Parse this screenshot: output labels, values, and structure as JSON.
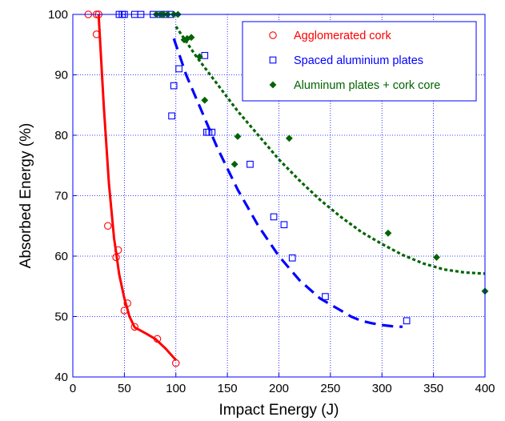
{
  "chart_data": {
    "type": "scatter",
    "title": "",
    "xlabel": "Impact Energy (J)",
    "ylabel": "Absorbed Energy (%)",
    "xlim": [
      0,
      400
    ],
    "ylim": [
      40,
      100
    ],
    "xticks": [
      "0",
      "50",
      "100",
      "150",
      "200",
      "250",
      "300",
      "350",
      "400"
    ],
    "yticks": [
      "40",
      "50",
      "60",
      "70",
      "80",
      "90",
      "100"
    ],
    "grid": true,
    "legend_position": "top-right",
    "series": [
      {
        "name": "Agglomerated cork",
        "color": "#ff0000",
        "marker": "circle",
        "points": [
          [
            15,
            100
          ],
          [
            23,
            100
          ],
          [
            25,
            100
          ],
          [
            23,
            96.7
          ],
          [
            34,
            65
          ],
          [
            42,
            59.8
          ],
          [
            44,
            61
          ],
          [
            50,
            51
          ],
          [
            53,
            52.2
          ],
          [
            60,
            48.3
          ],
          [
            82,
            46.3
          ],
          [
            100,
            42.3
          ]
        ],
        "fit_style": "solid",
        "fit": [
          [
            25,
            100
          ],
          [
            30,
            85
          ],
          [
            35,
            72
          ],
          [
            40,
            63
          ],
          [
            45,
            57
          ],
          [
            50,
            53
          ],
          [
            55,
            50
          ],
          [
            60,
            48.2
          ],
          [
            70,
            47.3
          ],
          [
            80,
            46.3
          ],
          [
            90,
            44.7
          ],
          [
            100,
            42.8
          ]
        ]
      },
      {
        "name": "Spaced aluminium plates",
        "color": "#0000ff",
        "marker": "square",
        "points": [
          [
            45,
            100
          ],
          [
            48,
            100
          ],
          [
            50,
            100
          ],
          [
            60,
            100
          ],
          [
            66,
            100
          ],
          [
            78,
            100
          ],
          [
            85,
            100
          ],
          [
            90,
            100
          ],
          [
            95,
            100
          ],
          [
            96,
            83.2
          ],
          [
            98,
            88.2
          ],
          [
            103,
            91
          ],
          [
            128,
            93.2
          ],
          [
            130,
            80.5
          ],
          [
            132,
            80.5
          ],
          [
            135,
            80.5
          ],
          [
            172,
            75.2
          ],
          [
            195,
            66.5
          ],
          [
            205,
            65.2
          ],
          [
            213,
            59.7
          ],
          [
            245,
            53.3
          ],
          [
            324,
            49.3
          ]
        ],
        "fit_style": "dashed",
        "fit": [
          [
            98,
            96
          ],
          [
            110,
            90
          ],
          [
            120,
            86
          ],
          [
            130,
            82
          ],
          [
            140,
            78
          ],
          [
            150,
            74.5
          ],
          [
            160,
            71
          ],
          [
            170,
            68
          ],
          [
            180,
            65
          ],
          [
            190,
            62.5
          ],
          [
            200,
            60
          ],
          [
            210,
            58
          ],
          [
            220,
            56
          ],
          [
            230,
            54.5
          ],
          [
            240,
            53
          ],
          [
            250,
            52
          ],
          [
            260,
            51
          ],
          [
            270,
            50
          ],
          [
            280,
            49.3
          ],
          [
            290,
            48.9
          ],
          [
            300,
            48.6
          ],
          [
            310,
            48.4
          ],
          [
            320,
            48.3
          ]
        ]
      },
      {
        "name": "Aluminum plates + cork core",
        "color": "#006400",
        "marker": "diamond",
        "points": [
          [
            81,
            100
          ],
          [
            85,
            100
          ],
          [
            88,
            100
          ],
          [
            92,
            100
          ],
          [
            98,
            100
          ],
          [
            102,
            100
          ],
          [
            108,
            95.8
          ],
          [
            111,
            96
          ],
          [
            115,
            96.2
          ],
          [
            123,
            93
          ],
          [
            128,
            85.8
          ],
          [
            157,
            75.2
          ],
          [
            160,
            79.8
          ],
          [
            210,
            79.5
          ],
          [
            306,
            63.8
          ],
          [
            353,
            59.8
          ],
          [
            400,
            54.2
          ]
        ],
        "fit_style": "dotted",
        "fit": [
          [
            100,
            98
          ],
          [
            120,
            93
          ],
          [
            140,
            88.5
          ],
          [
            160,
            84
          ],
          [
            180,
            80
          ],
          [
            200,
            76
          ],
          [
            220,
            72.5
          ],
          [
            240,
            69.3
          ],
          [
            260,
            66.5
          ],
          [
            280,
            64
          ],
          [
            300,
            62
          ],
          [
            320,
            60.2
          ],
          [
            340,
            58.8
          ],
          [
            360,
            57.8
          ],
          [
            380,
            57.3
          ],
          [
            400,
            57.1
          ]
        ]
      }
    ]
  }
}
